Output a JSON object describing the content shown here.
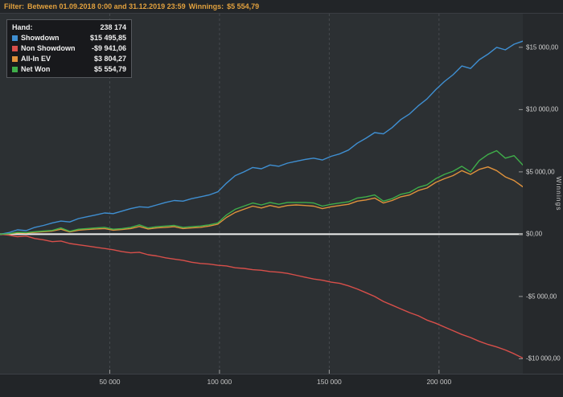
{
  "filter_bar": {
    "label": "Filter:",
    "range_text": "Between 01.09.2018 0:00 and 31.12.2019 23:59",
    "winnings_label": "Winnings:",
    "winnings_value": "$5 554,79"
  },
  "legend": {
    "rows": [
      {
        "label": "Hand:",
        "value": "238 174",
        "color": null
      },
      {
        "label": "Showdown",
        "value": "$15 495,85",
        "color": "#3f8fd2"
      },
      {
        "label": "Non Showdown",
        "value": "-$9 941,06",
        "color": "#d84f4a"
      },
      {
        "label": "All-In EV",
        "value": "$3 804,27",
        "color": "#e0923c"
      },
      {
        "label": "Net Won",
        "value": "$5 554,79",
        "color": "#3fae4a"
      }
    ]
  },
  "chart_data": {
    "type": "line",
    "title": "",
    "xlabel": "",
    "ylabel": "Winnings",
    "xlim": [
      0,
      238174
    ],
    "ylim": [
      -11200,
      17700
    ],
    "grid": "vertical-dashed",
    "grid_color": "#45494e",
    "zero_line_color": "#efefef",
    "tick_color": "#9a9a9a",
    "legend_position": "top-left",
    "x_ticks": [
      {
        "value": 50000,
        "label": "50 000"
      },
      {
        "value": 100000,
        "label": "100 000"
      },
      {
        "value": 150000,
        "label": "150 000"
      },
      {
        "value": 200000,
        "label": "200 000"
      }
    ],
    "y_ticks": [
      {
        "value": 15000,
        "label": "$15 000,00"
      },
      {
        "value": 10000,
        "label": "$10 000,00"
      },
      {
        "value": 5000,
        "label": "$5 000,00"
      },
      {
        "value": 0,
        "label": "$0,00"
      },
      {
        "value": -5000,
        "label": "-$5 000,00"
      },
      {
        "value": -10000,
        "label": "-$10 000,00"
      }
    ],
    "series": [
      {
        "name": "Showdown",
        "color": "#3f8fd2",
        "values": [
          0,
          120,
          350,
          280,
          550,
          700,
          900,
          1050,
          980,
          1250,
          1400,
          1550,
          1700,
          1650,
          1850,
          2050,
          2200,
          2150,
          2350,
          2550,
          2700,
          2650,
          2850,
          3000,
          3150,
          3400,
          4100,
          4700,
          5000,
          5350,
          5250,
          5550,
          5450,
          5700,
          5850,
          6000,
          6100,
          5950,
          6250,
          6450,
          6750,
          7300,
          7700,
          8150,
          8050,
          8550,
          9200,
          9650,
          10300,
          10850,
          11600,
          12250,
          12800,
          13500,
          13300,
          14000,
          14450,
          15000,
          14800,
          15250,
          15495.85
        ]
      },
      {
        "name": "Non Showdown",
        "color": "#d84f4a",
        "values": [
          0,
          -80,
          -200,
          -150,
          -350,
          -450,
          -600,
          -550,
          -750,
          -850,
          -950,
          -1050,
          -1150,
          -1250,
          -1400,
          -1500,
          -1450,
          -1650,
          -1750,
          -1900,
          -2000,
          -2100,
          -2250,
          -2350,
          -2400,
          -2500,
          -2550,
          -2700,
          -2750,
          -2850,
          -2900,
          -3000,
          -3050,
          -3150,
          -3300,
          -3450,
          -3600,
          -3700,
          -3850,
          -3950,
          -4150,
          -4400,
          -4700,
          -5000,
          -5400,
          -5700,
          -6000,
          -6300,
          -6550,
          -6900,
          -7150,
          -7450,
          -7750,
          -8050,
          -8300,
          -8600,
          -8850,
          -9050,
          -9300,
          -9600,
          -9941.06
        ]
      },
      {
        "name": "All-In EV",
        "color": "#e0923c",
        "values": [
          0,
          20,
          100,
          80,
          150,
          200,
          250,
          400,
          180,
          320,
          380,
          420,
          450,
          320,
          380,
          450,
          620,
          420,
          500,
          550,
          600,
          450,
          500,
          550,
          650,
          800,
          1350,
          1750,
          2000,
          2250,
          2100,
          2300,
          2150,
          2300,
          2350,
          2300,
          2250,
          2050,
          2200,
          2300,
          2400,
          2650,
          2750,
          2900,
          2500,
          2700,
          3000,
          3150,
          3500,
          3700,
          4150,
          4450,
          4700,
          5100,
          4800,
          5200,
          5400,
          5100,
          4600,
          4300,
          3804.27
        ]
      },
      {
        "name": "Net Won",
        "color": "#3fae4a",
        "values": [
          0,
          40,
          150,
          130,
          200,
          250,
          300,
          500,
          230,
          400,
          450,
          500,
          550,
          400,
          450,
          550,
          750,
          500,
          600,
          650,
          700,
          550,
          600,
          650,
          750,
          900,
          1550,
          2000,
          2250,
          2500,
          2350,
          2550,
          2400,
          2550,
          2550,
          2550,
          2500,
          2250,
          2400,
          2500,
          2600,
          2900,
          3000,
          3150,
          2650,
          2850,
          3200,
          3350,
          3750,
          3950,
          4450,
          4800,
          5050,
          5450,
          5000,
          5900,
          6400,
          6700,
          6100,
          6300,
          5554.79
        ]
      }
    ]
  }
}
